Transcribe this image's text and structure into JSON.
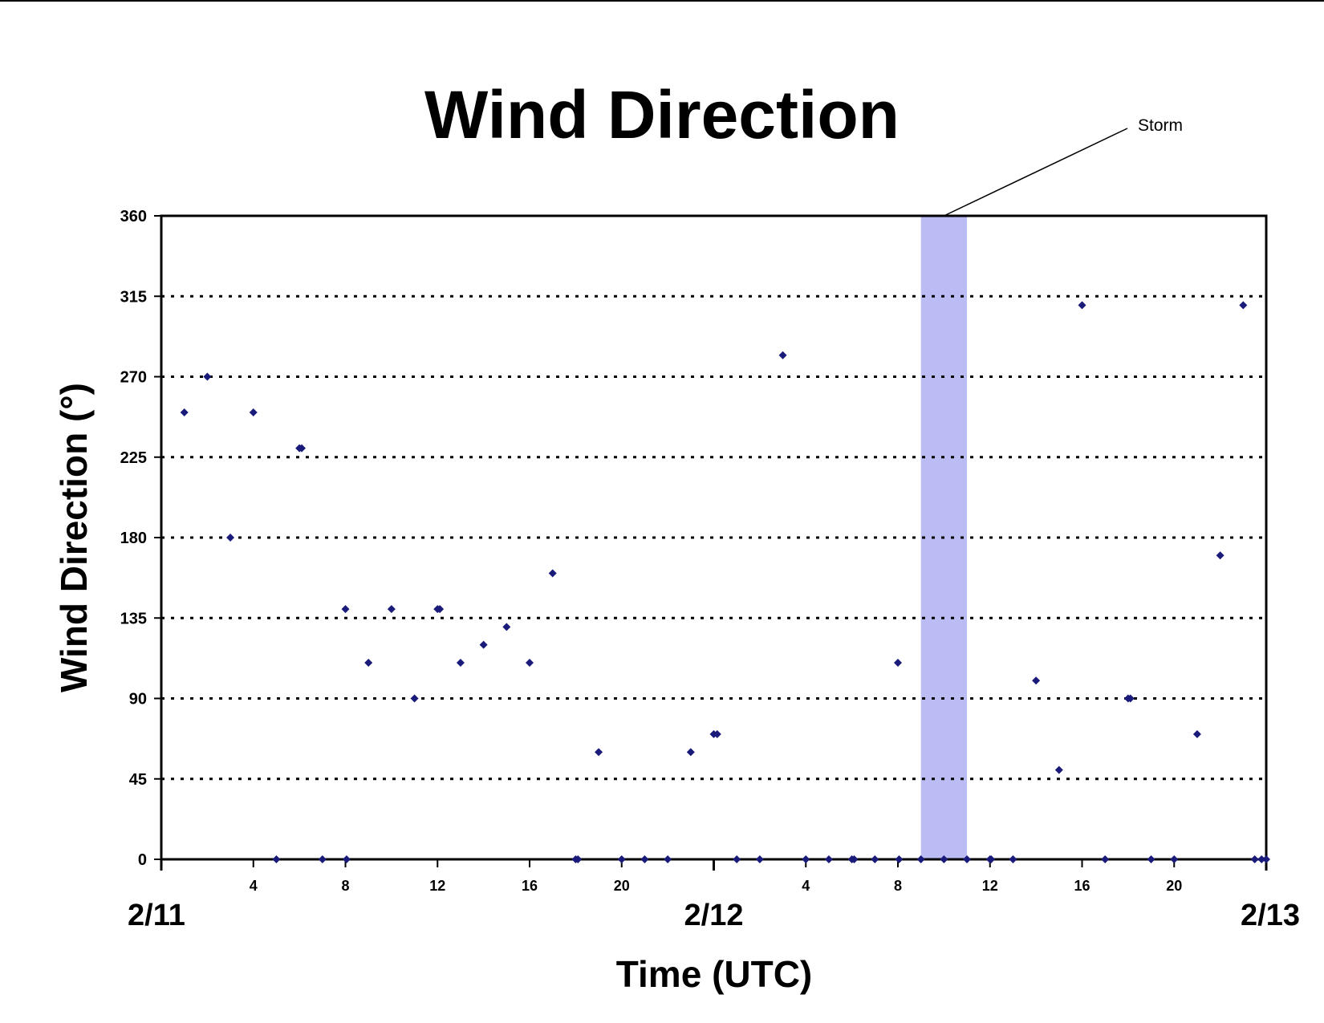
{
  "chart_data": {
    "type": "scatter",
    "title": "Wind Direction",
    "xlabel": "Time (UTC)",
    "ylabel": "Wind Direction (°)",
    "ylim": [
      0,
      360
    ],
    "yticks": [
      0,
      45,
      90,
      135,
      180,
      225,
      270,
      315,
      360
    ],
    "xlim": [
      0,
      48
    ],
    "x_unit": "hours from 2/11 00 UTC",
    "hour_ticks": [
      {
        "x": 4,
        "label": "4"
      },
      {
        "x": 8,
        "label": "8"
      },
      {
        "x": 12,
        "label": "12"
      },
      {
        "x": 16,
        "label": "16"
      },
      {
        "x": 20,
        "label": "20"
      },
      {
        "x": 28,
        "label": "4"
      },
      {
        "x": 32,
        "label": "8"
      },
      {
        "x": 36,
        "label": "12"
      },
      {
        "x": 40,
        "label": "16"
      },
      {
        "x": 44,
        "label": "20"
      }
    ],
    "day_labels": [
      {
        "x": 0,
        "label": "2/11"
      },
      {
        "x": 24,
        "label": "2/12"
      },
      {
        "x": 48,
        "label": "2/13"
      }
    ],
    "grid": "horizontal dotted",
    "marker_color": "#1a1a7a",
    "highlight": {
      "x_start": 33,
      "x_end": 35,
      "color": "#bcbcf5",
      "label": "Storm"
    },
    "points": [
      [
        1,
        250
      ],
      [
        2,
        270
      ],
      [
        3,
        180
      ],
      [
        4,
        250
      ],
      [
        5,
        0
      ],
      [
        6,
        230
      ],
      [
        6.1,
        230
      ],
      [
        7,
        0
      ],
      [
        8,
        140
      ],
      [
        8.05,
        0
      ],
      [
        9,
        110
      ],
      [
        10,
        140
      ],
      [
        11,
        90
      ],
      [
        12,
        140
      ],
      [
        12.1,
        140
      ],
      [
        13,
        110
      ],
      [
        14,
        120
      ],
      [
        15,
        130
      ],
      [
        16,
        110
      ],
      [
        17,
        160
      ],
      [
        18,
        0
      ],
      [
        18.1,
        0
      ],
      [
        19,
        60
      ],
      [
        20,
        0
      ],
      [
        21,
        0
      ],
      [
        22,
        0
      ],
      [
        23,
        60
      ],
      [
        24,
        70
      ],
      [
        24.15,
        70
      ],
      [
        25,
        0
      ],
      [
        26,
        0
      ],
      [
        27,
        282
      ],
      [
        28,
        0
      ],
      [
        29,
        0
      ],
      [
        30,
        0
      ],
      [
        30.1,
        0
      ],
      [
        31,
        0
      ],
      [
        32,
        110
      ],
      [
        32.05,
        0
      ],
      [
        33,
        0
      ],
      [
        34,
        0
      ],
      [
        35,
        0
      ],
      [
        36,
        0
      ],
      [
        36.05,
        0
      ],
      [
        37,
        0
      ],
      [
        38,
        100
      ],
      [
        39,
        50
      ],
      [
        40,
        310
      ],
      [
        41,
        0
      ],
      [
        42,
        90
      ],
      [
        42.1,
        90
      ],
      [
        43,
        0
      ],
      [
        44,
        0
      ],
      [
        45,
        70
      ],
      [
        46,
        170
      ],
      [
        47,
        310
      ],
      [
        47.5,
        0
      ],
      [
        47.8,
        0
      ],
      [
        48,
        0
      ]
    ]
  }
}
